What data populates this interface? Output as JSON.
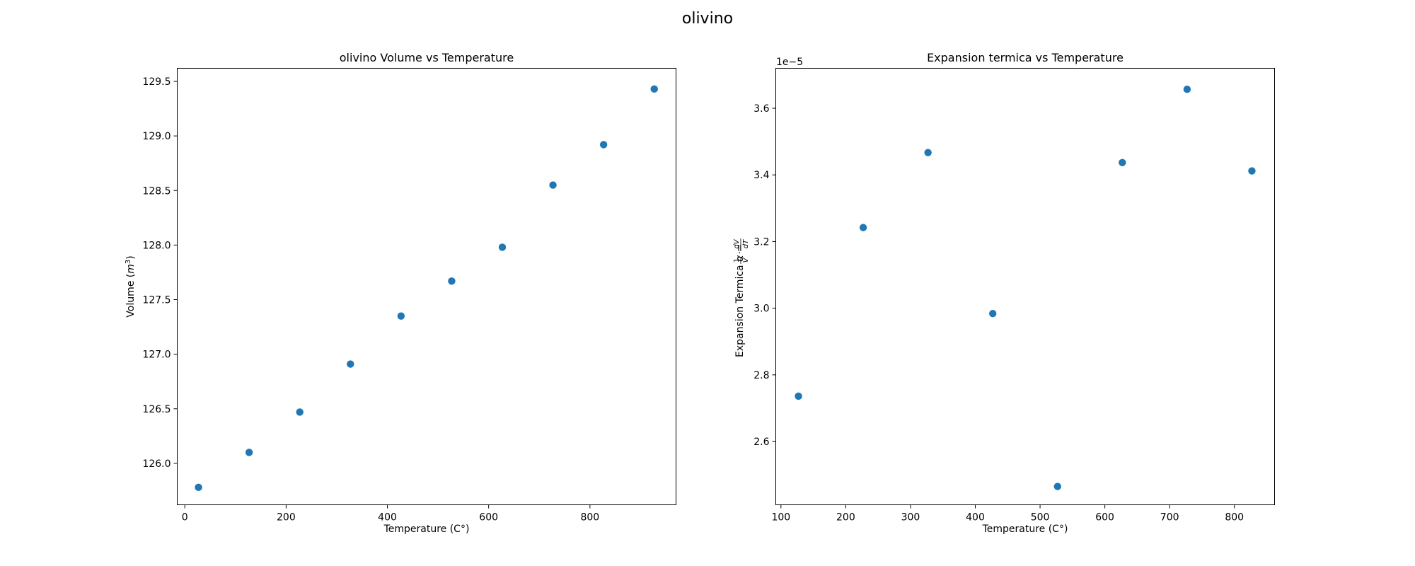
{
  "figure": {
    "title": "olivino"
  },
  "chart_data": [
    {
      "type": "scatter",
      "title": "olivino Volume vs Temperature",
      "xlabel": "Temperature (C°)",
      "ylabel": "Volume (m³)",
      "xlim": [
        -15,
        970
      ],
      "ylim": [
        125.62,
        129.62
      ],
      "xticks": [
        0,
        200,
        400,
        600,
        800
      ],
      "xtick_labels": [
        "0",
        "200",
        "400",
        "600",
        "800"
      ],
      "yticks": [
        126.0,
        126.5,
        127.0,
        127.5,
        128.0,
        128.5,
        129.0,
        129.5
      ],
      "ytick_labels": [
        "126.0",
        "126.5",
        "127.0",
        "127.5",
        "128.0",
        "128.5",
        "129.0",
        "129.5"
      ],
      "series": [
        {
          "color": "#1f77b4",
          "x": [
            27,
            127,
            227,
            327,
            427,
            527,
            627,
            727,
            827,
            927
          ],
          "y": [
            125.78,
            126.1,
            126.47,
            126.91,
            127.35,
            127.67,
            127.98,
            128.55,
            128.92,
            129.43
          ]
        }
      ]
    },
    {
      "type": "scatter",
      "title": "Expansion termica vs Temperature",
      "xlabel": "Temperature (C°)",
      "ylabel": "Expansion Termica  α = (1/V)·(dV/dT)",
      "offset_text": "1e−5",
      "xlim": [
        92,
        862
      ],
      "ylim": [
        2.41,
        3.72
      ],
      "xticks": [
        100,
        200,
        300,
        400,
        500,
        600,
        700,
        800
      ],
      "xtick_labels": [
        "100",
        "200",
        "300",
        "400",
        "500",
        "600",
        "700",
        "800"
      ],
      "yticks": [
        2.6,
        2.8,
        3.0,
        3.2,
        3.4,
        3.6
      ],
      "ytick_labels": [
        "2.6",
        "2.8",
        "3.0",
        "3.2",
        "3.4",
        "3.6"
      ],
      "series": [
        {
          "color": "#1f77b4",
          "x": [
            127,
            227,
            327,
            427,
            527,
            627,
            727,
            827
          ],
          "y": [
            2.736,
            3.242,
            3.467,
            2.984,
            2.465,
            3.437,
            3.657,
            3.412
          ]
        }
      ]
    }
  ]
}
